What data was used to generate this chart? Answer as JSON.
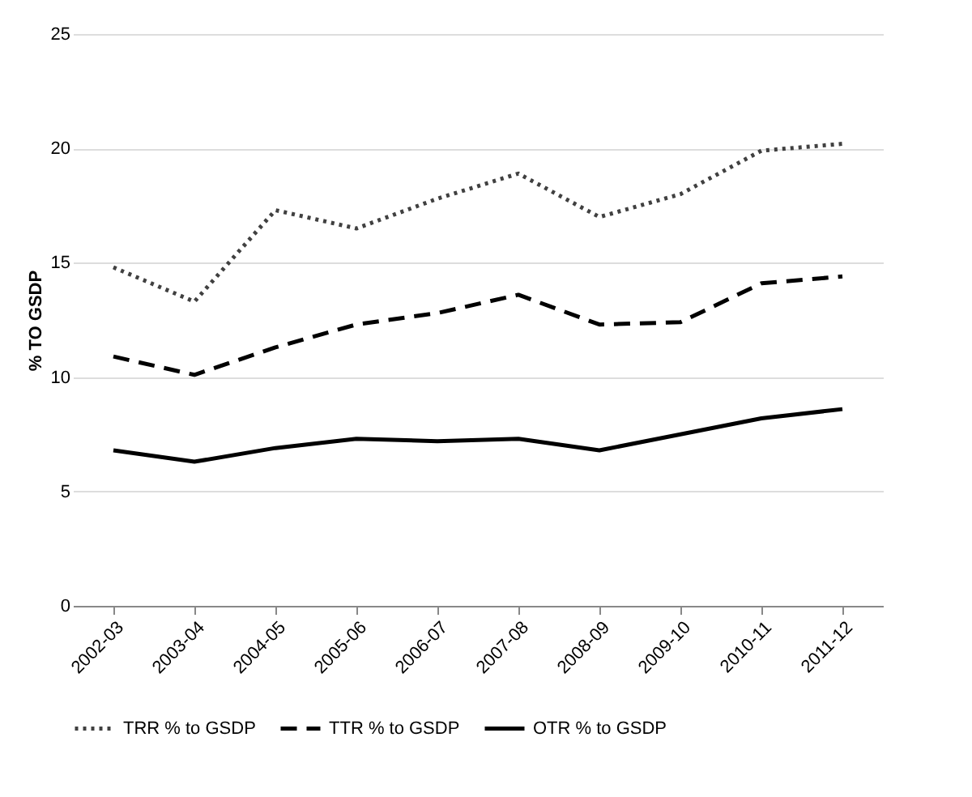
{
  "chart_data": {
    "type": "line",
    "ylabel": "% TO GSDP",
    "categories": [
      "2002-03",
      "2003-04",
      "2004-05",
      "2005-06",
      "2006-07",
      "2007-08",
      "2008-09",
      "2009-10",
      "2010-11",
      "2011-12"
    ],
    "series": [
      {
        "name": "TRR % to GSDP",
        "color": "#404040",
        "line_style": "dotted",
        "values": [
          14.8,
          13.3,
          17.3,
          16.5,
          17.8,
          18.9,
          17.0,
          18.0,
          19.9,
          20.2
        ]
      },
      {
        "name": "TTR % to GSDP",
        "color": "#000000",
        "line_style": "dashed",
        "values": [
          10.9,
          10.1,
          11.3,
          12.3,
          12.8,
          13.6,
          12.3,
          12.4,
          14.1,
          14.4
        ]
      },
      {
        "name": "OTR % to GSDP",
        "color": "#000000",
        "line_style": "solid",
        "values": [
          6.8,
          6.3,
          6.9,
          7.3,
          7.2,
          7.3,
          6.8,
          7.5,
          8.2,
          8.6
        ]
      }
    ],
    "ylim": [
      0,
      25
    ],
    "yticks": [
      0,
      5,
      10,
      15,
      20,
      25
    ],
    "grid": "y",
    "legend": "bottom",
    "marker": "none"
  }
}
